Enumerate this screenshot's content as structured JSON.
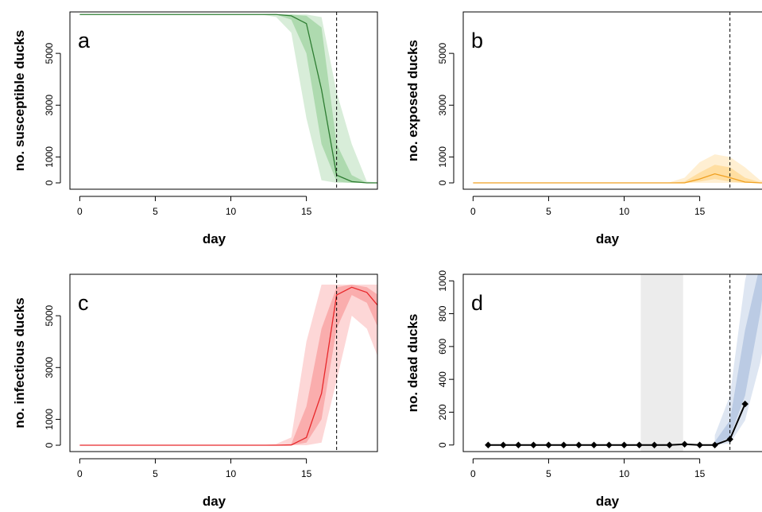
{
  "chart_data": [
    {
      "type": "line",
      "panel_label": "a",
      "ylabel": "no. susceptible ducks",
      "xlabel": "day",
      "xlim": [
        -0.65,
        19.7
      ],
      "ylim": [
        -245,
        6600
      ],
      "xticks": [
        0,
        5,
        10,
        15
      ],
      "yticks": [
        0,
        1000,
        3000,
        5000
      ],
      "vline": 17,
      "color": "#2e7d32",
      "band_color": "#4caf50",
      "x": [
        0,
        1,
        2,
        3,
        4,
        5,
        6,
        7,
        8,
        9,
        10,
        11,
        12,
        13,
        14,
        15,
        16,
        17,
        18,
        19,
        20
      ],
      "median": [
        6500,
        6500,
        6500,
        6500,
        6500,
        6500,
        6500,
        6500,
        6500,
        6500,
        6500,
        6500,
        6500,
        6500,
        6450,
        6150,
        3600,
        300,
        50,
        0,
        0
      ],
      "inner_band": {
        "lower": [
          6500,
          6500,
          6500,
          6500,
          6500,
          6500,
          6500,
          6500,
          6500,
          6500,
          6500,
          6500,
          6500,
          6500,
          6300,
          5000,
          1500,
          50,
          0,
          0,
          0
        ],
        "upper": [
          6500,
          6500,
          6500,
          6500,
          6500,
          6500,
          6500,
          6500,
          6500,
          6500,
          6500,
          6500,
          6500,
          6500,
          6500,
          6450,
          6000,
          1500,
          300,
          0,
          0
        ]
      },
      "outer_band": {
        "lower": [
          6500,
          6500,
          6500,
          6500,
          6500,
          6500,
          6500,
          6500,
          6500,
          6500,
          6500,
          6500,
          6500,
          6400,
          5800,
          2500,
          100,
          0,
          0,
          0,
          0
        ],
        "upper": [
          6500,
          6500,
          6500,
          6500,
          6500,
          6500,
          6500,
          6500,
          6500,
          6500,
          6500,
          6500,
          6500,
          6500,
          6500,
          6500,
          6400,
          3500,
          1500,
          50,
          0
        ]
      }
    },
    {
      "type": "line",
      "panel_label": "b",
      "ylabel": "no. exposed ducks",
      "xlabel": "day",
      "xlim": [
        -0.65,
        19.7
      ],
      "ylim": [
        -245,
        6600
      ],
      "xticks": [
        0,
        5,
        10,
        15
      ],
      "yticks": [
        0,
        1000,
        3000,
        5000
      ],
      "vline": 17,
      "color": "#f0a020",
      "band_color": "#ffb733",
      "x": [
        0,
        1,
        2,
        3,
        4,
        5,
        6,
        7,
        8,
        9,
        10,
        11,
        12,
        13,
        14,
        15,
        16,
        17,
        18,
        19,
        20
      ],
      "median": [
        0,
        0,
        0,
        0,
        0,
        0,
        0,
        0,
        0,
        0,
        0,
        0,
        0,
        0,
        0,
        150,
        350,
        200,
        30,
        0,
        0
      ],
      "inner_band": {
        "lower": [
          0,
          0,
          0,
          0,
          0,
          0,
          0,
          0,
          0,
          0,
          0,
          0,
          0,
          0,
          0,
          50,
          150,
          50,
          0,
          0,
          0
        ],
        "upper": [
          0,
          0,
          0,
          0,
          0,
          0,
          0,
          0,
          0,
          0,
          0,
          0,
          0,
          0,
          50,
          400,
          700,
          600,
          200,
          20,
          0
        ]
      },
      "outer_band": {
        "lower": [
          0,
          0,
          0,
          0,
          0,
          0,
          0,
          0,
          0,
          0,
          0,
          0,
          0,
          0,
          0,
          0,
          0,
          0,
          0,
          0,
          0
        ],
        "upper": [
          0,
          0,
          0,
          0,
          0,
          0,
          0,
          0,
          0,
          0,
          0,
          0,
          0,
          20,
          200,
          800,
          1100,
          1000,
          600,
          100,
          0
        ]
      }
    },
    {
      "type": "line",
      "panel_label": "c",
      "ylabel": "no. infectious ducks",
      "xlabel": "day",
      "xlim": [
        -0.65,
        19.7
      ],
      "ylim": [
        -245,
        6600
      ],
      "xticks": [
        0,
        5,
        10,
        15
      ],
      "yticks": [
        0,
        1000,
        3000,
        5000
      ],
      "vline": 17,
      "color": "#e8282b",
      "band_color": "#f44b4b",
      "x": [
        0,
        1,
        2,
        3,
        4,
        5,
        6,
        7,
        8,
        9,
        10,
        11,
        12,
        13,
        14,
        15,
        16,
        17,
        18,
        19,
        20
      ],
      "median": [
        0,
        0,
        0,
        0,
        0,
        0,
        0,
        0,
        0,
        0,
        0,
        0,
        0,
        0,
        10,
        300,
        2000,
        5800,
        6100,
        5900,
        5200
      ],
      "inner_band": {
        "lower": [
          0,
          0,
          0,
          0,
          0,
          0,
          0,
          0,
          0,
          0,
          0,
          0,
          0,
          0,
          0,
          100,
          1000,
          4500,
          5800,
          5500,
          4200
        ],
        "upper": [
          0,
          0,
          0,
          0,
          0,
          0,
          0,
          0,
          0,
          0,
          0,
          0,
          0,
          0,
          50,
          1500,
          4500,
          6100,
          6200,
          6100,
          5700
        ]
      },
      "outer_band": {
        "lower": [
          0,
          0,
          0,
          0,
          0,
          0,
          0,
          0,
          0,
          0,
          0,
          0,
          0,
          0,
          0,
          0,
          100,
          2500,
          5000,
          4500,
          3000
        ],
        "upper": [
          0,
          0,
          0,
          0,
          0,
          0,
          0,
          0,
          0,
          0,
          0,
          0,
          0,
          50,
          300,
          4000,
          6200,
          6200,
          6200,
          6200,
          6200
        ]
      }
    },
    {
      "type": "line",
      "panel_label": "d",
      "ylabel": "no. dead ducks",
      "xlabel": "day",
      "xlim": [
        -0.65,
        19.7
      ],
      "ylim": [
        -40,
        1040
      ],
      "xticks": [
        0,
        5,
        10,
        15
      ],
      "yticks": [
        0,
        200,
        400,
        600,
        800,
        1000
      ],
      "vline": 17,
      "band_color": "#6a8fc4",
      "shaded_x": [
        11.1,
        13.9
      ],
      "x": [
        16,
        17,
        18,
        19,
        20
      ],
      "inner_band": {
        "lower": [
          0,
          50,
          300,
          800,
          1500
        ],
        "upper": [
          20,
          150,
          700,
          1100,
          1800
        ]
      },
      "outer_band": {
        "lower": [
          0,
          10,
          150,
          500,
          1000
        ],
        "upper": [
          60,
          300,
          1000,
          1400,
          2200
        ]
      },
      "observed": {
        "x": [
          1,
          2,
          3,
          4,
          5,
          6,
          7,
          8,
          9,
          10,
          11,
          12,
          13,
          14,
          15,
          16,
          17,
          18
        ],
        "values": [
          0,
          0,
          0,
          0,
          0,
          0,
          0,
          0,
          0,
          0,
          0,
          0,
          0,
          5,
          0,
          0,
          35,
          250
        ],
        "color": "#000000"
      }
    }
  ]
}
